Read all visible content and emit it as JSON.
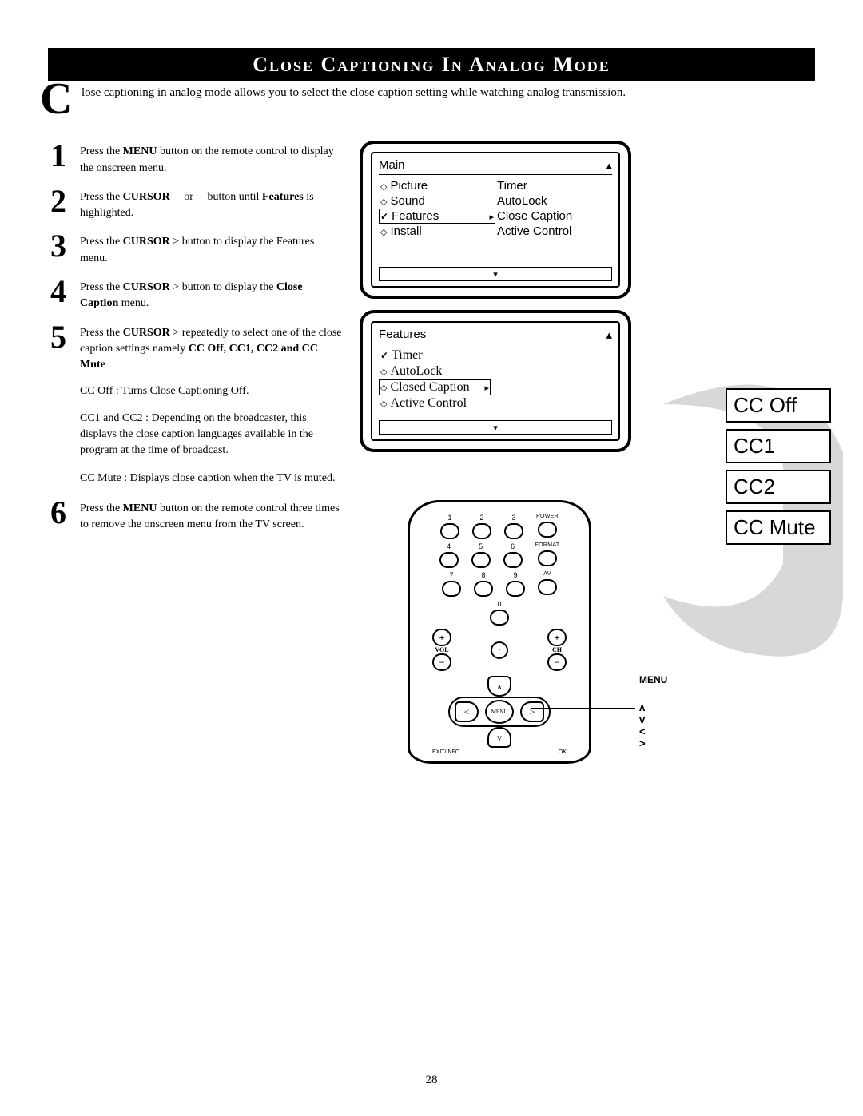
{
  "title": "Close Captioning In Analog Mode",
  "intro_drop": "C",
  "intro": "lose captioning in analog mode allows you to select the close caption setting while watching analog transmission.",
  "steps": [
    {
      "n": "1",
      "html": "Press the <b>MENU</b> button on the remote control to display the onscreen menu."
    },
    {
      "n": "2",
      "html": "Press the <b>CURSOR</b> &nbsp;&nbsp;&nbsp; or &nbsp;&nbsp;&nbsp; button until <b>Features</b> is highlighted."
    },
    {
      "n": "3",
      "html": "Press the <b>CURSOR</b> &gt; button to display the Features menu."
    },
    {
      "n": "4",
      "html": "Press the <b>CURSOR</b> &gt; button to display the <b>Close Caption</b> menu."
    },
    {
      "n": "5",
      "html": "Press the <b>CURSOR</b> &gt; repeatedly to select one of the close caption settings namely <b>CC Off, CC1, CC2 and CC Mute</b>"
    }
  ],
  "descs": [
    {
      "html": "<span class=\"ib\">CC Off :</span> Turns Close Captioning Off."
    },
    {
      "html": "<span class=\"ib\">CC1 and CC2 :</span>  Depending on the broadcaster, this displays the close caption languages available in the program at the time of broadcast."
    },
    {
      "html": "<span class=\"ib\">CC Mute :</span> Displays close caption when the TV is muted."
    }
  ],
  "step6": {
    "n": "6",
    "html": "Press the <b>MENU</b> button on the remote control three times to remove the onscreen menu from the TV screen."
  },
  "screen1": {
    "title": "Main",
    "left": [
      {
        "icon": "diamond",
        "label": "Picture"
      },
      {
        "icon": "diamond",
        "label": "Sound"
      },
      {
        "icon": "check",
        "label": "Features",
        "selected": true
      },
      {
        "icon": "diamond",
        "label": "Install"
      }
    ],
    "right": [
      "Timer",
      "AutoLock",
      "Close Caption",
      "Active Control"
    ]
  },
  "screen2": {
    "title": "Features",
    "items": [
      {
        "icon": "check",
        "label": "Timer"
      },
      {
        "icon": "diamond",
        "label": "AutoLock"
      },
      {
        "icon": "diamond",
        "label": "Closed Caption",
        "selected": true
      },
      {
        "icon": "diamond",
        "label": "Active Control"
      }
    ]
  },
  "cc_options": [
    "CC Off",
    "CC1",
    "CC2",
    "CC Mute"
  ],
  "remote": {
    "row1": [
      {
        "t": "1"
      },
      {
        "t": "2"
      },
      {
        "t": "3"
      },
      {
        "t": "",
        "s": "POWER"
      }
    ],
    "row2": [
      {
        "t": "4"
      },
      {
        "t": "5"
      },
      {
        "t": "6"
      },
      {
        "t": "",
        "s": "FORMAT"
      }
    ],
    "row3": [
      {
        "t": "7"
      },
      {
        "t": "8"
      },
      {
        "t": "9"
      },
      {
        "t": "",
        "s": "AV"
      }
    ],
    "row4_center": "0",
    "vol_label": "VOL",
    "ch_label": "CH",
    "menu_label": "MENU",
    "exit_label": "EXIT/INFO",
    "ok_label": "OK"
  },
  "callout_menu": "MENU",
  "callout_arrows": "ʌ  v  <  >",
  "page": "28",
  "colors": {
    "bg": "#ffffff",
    "fg": "#000000",
    "swoosh": "#d8d8d8"
  }
}
